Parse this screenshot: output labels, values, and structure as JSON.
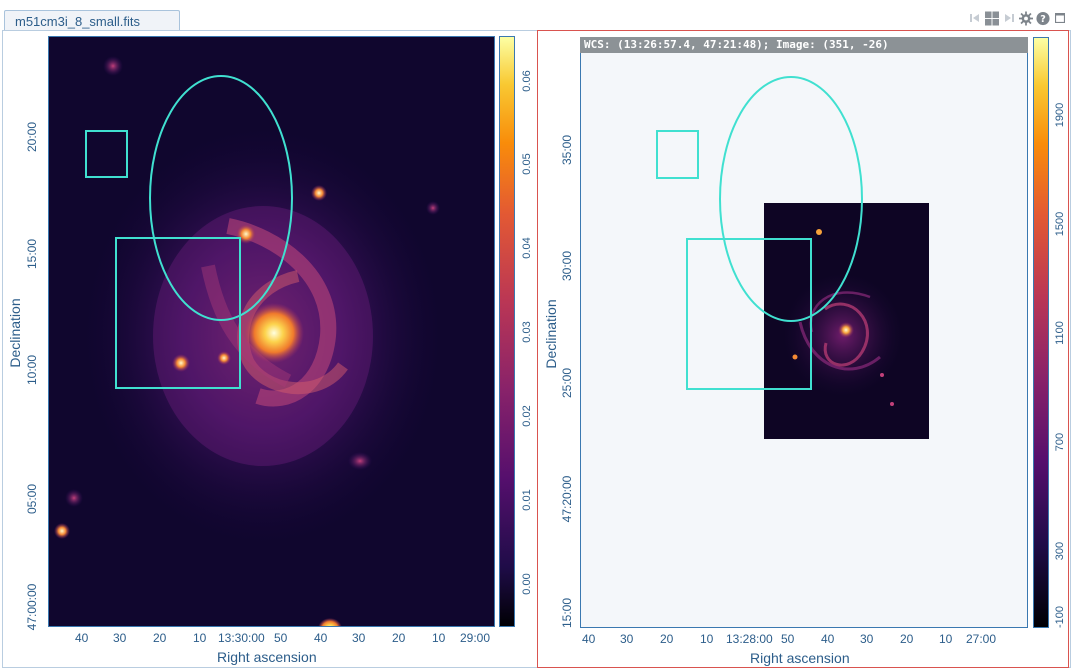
{
  "tab": {
    "title": "m51cm3i_8_small.fits"
  },
  "toolbar": {
    "items": [
      {
        "name": "first-frame-icon"
      },
      {
        "name": "grid-layout-icon"
      },
      {
        "name": "last-frame-icon"
      },
      {
        "name": "gear-icon"
      },
      {
        "name": "help-icon"
      },
      {
        "name": "maximize-icon"
      }
    ]
  },
  "left_image": {
    "xlabel": "Right ascension",
    "ylabel": "Declination",
    "xticks": [
      "40",
      "30",
      "20",
      "10",
      "13:30:00",
      "50",
      "40",
      "30",
      "20",
      "10",
      "29:00"
    ],
    "yticks": [
      "20:00",
      "15:00",
      "10:00",
      "05:00",
      "47:00:00"
    ],
    "colorbar_ticks": [
      "0.06",
      "0.05",
      "0.04",
      "0.03",
      "0.02",
      "0.01",
      "0.00"
    ],
    "colormap": "inferno"
  },
  "right_image": {
    "wcs_readout": "WCS: (13:26:57.4, 47:21:48); Image: (351, -26)",
    "xlabel": "Right ascension",
    "ylabel": "Declination",
    "xticks": [
      "40",
      "30",
      "20",
      "10",
      "13:28:00",
      "50",
      "40",
      "30",
      "20",
      "10",
      "27:00"
    ],
    "yticks": [
      "35:00",
      "30:00",
      "25:00",
      "47:20:00",
      "15:00"
    ],
    "colorbar_ticks": [
      "1900",
      "1500",
      "1100",
      "700",
      "300",
      "-100"
    ],
    "colormap": "inferno"
  },
  "colors": {
    "region": "#40e0d0",
    "axis": "#3a78b0",
    "active_border": "#d9534f",
    "panel_background": "#f4f7fa"
  }
}
